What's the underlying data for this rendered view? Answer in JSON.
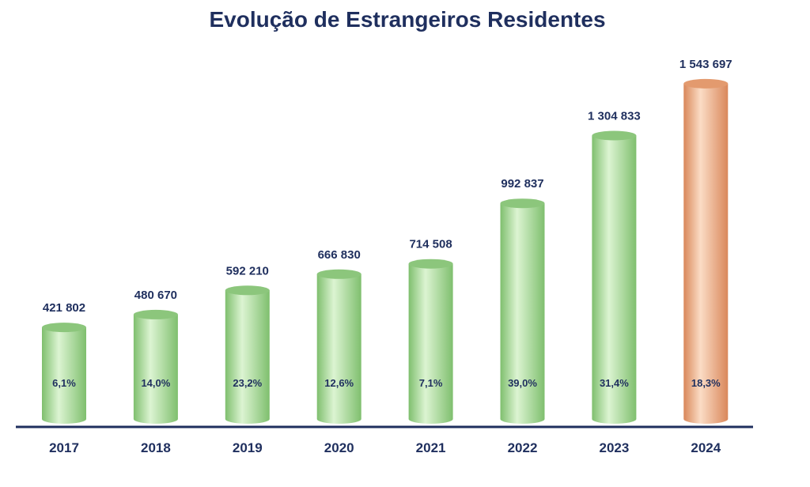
{
  "chart_data": {
    "type": "bar",
    "title": "Evolução de Estrangeiros Residentes",
    "xlabel": "",
    "ylabel": "",
    "ylim": [
      0,
      1800000
    ],
    "grid": false,
    "categories": [
      "2017",
      "2018",
      "2019",
      "2020",
      "2021",
      "2022",
      "2023",
      "2024"
    ],
    "values": [
      421802,
      480670,
      592210,
      666830,
      714508,
      992837,
      1304833,
      1543697
    ],
    "value_labels": [
      "421 802",
      "480 670",
      "592 210",
      "666 830",
      "714 508",
      "992 837",
      "1 304 833",
      "1 543 697"
    ],
    "growth_labels": [
      "6,1%",
      "14,0%",
      "23,2%",
      "12,6%",
      "7,1%",
      "39,0%",
      "31,4%",
      "18,3%"
    ],
    "highlight_index": 7,
    "colors": {
      "title": "#1f2f5e",
      "text": "#1f2f5e",
      "bar": "#b4e3a4",
      "bar_dark": "#7fbf6e",
      "bar_light": "#dcf4d2",
      "bar_top": "#8cc67c",
      "highlight": "#f6bd95",
      "highlight_dark": "#d9875a",
      "highlight_light": "#fbdcc5",
      "highlight_top": "#e39a6e",
      "axis": "#1f2f5e"
    }
  }
}
